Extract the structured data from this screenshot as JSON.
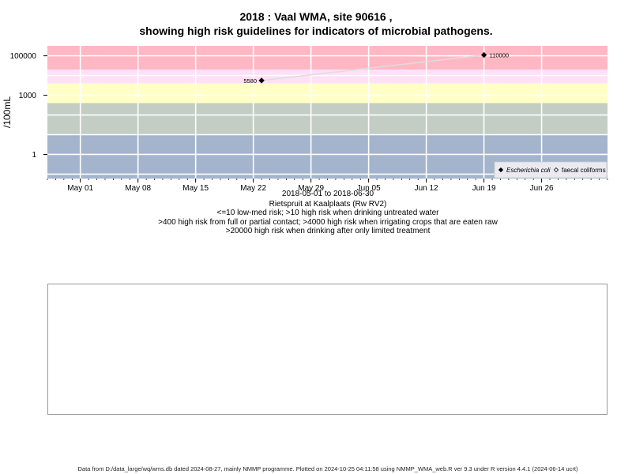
{
  "title_line1": "2018 : Vaal WMA, site 90616 ,",
  "title_line2": "showing high risk guidelines for indicators of microbial pathogens.",
  "subtitle_lines": [
    "2018-05-01 to 2018-06-30",
    "Rietspruit at Kaalplaats (Rw RV2)",
    "<=10 low-med risk; >10 high risk when drinking untreated water",
    ">400 high risk from full or partial contact; >4000 high risk when irrigating crops that are eaten raw",
    ">20000 high risk when drinking after only limited treatment"
  ],
  "footer": "Data from D:/data_large/wq/wms.db dated 2024-08-27, mainly NMMP programme. Plotted on 2024-10-25 04:11:58 using NMMP_WMA_web.R ver 9.3 under R version 4.4.1 (2024-06-14 ucrt)",
  "chart_data": {
    "type": "line",
    "ylabel": "/100mL",
    "y_scale": "log10",
    "ylim": [
      0.06,
      320000
    ],
    "xlim": [
      "2018-04-27",
      "2018-07-04"
    ],
    "x_ticks": [
      {
        "date": "2018-05-01",
        "label": "May 01"
      },
      {
        "date": "2018-05-08",
        "label": "May 08"
      },
      {
        "date": "2018-05-15",
        "label": "May 15"
      },
      {
        "date": "2018-05-22",
        "label": "May 22"
      },
      {
        "date": "2018-05-29",
        "label": "May 29"
      },
      {
        "date": "2018-06-05",
        "label": "Jun 05"
      },
      {
        "date": "2018-06-12",
        "label": "Jun 12"
      },
      {
        "date": "2018-06-19",
        "label": "Jun 19"
      },
      {
        "date": "2018-06-26",
        "label": "Jun 26"
      }
    ],
    "y_ticks": [
      {
        "value": 1,
        "label": "1"
      },
      {
        "value": 1000,
        "label": "1000"
      },
      {
        "value": 100000,
        "label": "100000"
      }
    ],
    "risk_bands": [
      {
        "from": 0.06,
        "to": 10,
        "color": "#a3b4cc"
      },
      {
        "from": 10,
        "to": 400,
        "color": "#c3cdc3"
      },
      {
        "from": 400,
        "to": 4000,
        "color": "#ffffc6"
      },
      {
        "from": 4000,
        "to": 20000,
        "color": "#ffe0f8"
      },
      {
        "from": 20000,
        "to": 320000,
        "color": "#ffb7c4"
      }
    ],
    "grid": true,
    "series": [
      {
        "name": "Escherichia coli",
        "marker": "filled-diamond",
        "color": "#000000",
        "line_color": "#dddddd",
        "points": [
          {
            "date": "2018-05-23",
            "value": 5580,
            "label": "5580"
          },
          {
            "date": "2018-06-19",
            "value": 110000,
            "label": "110000"
          }
        ]
      },
      {
        "name": "faecal coliforms",
        "marker": "open-diamond",
        "color": "#000000",
        "points": []
      }
    ],
    "legend_position": "bottom-right"
  }
}
